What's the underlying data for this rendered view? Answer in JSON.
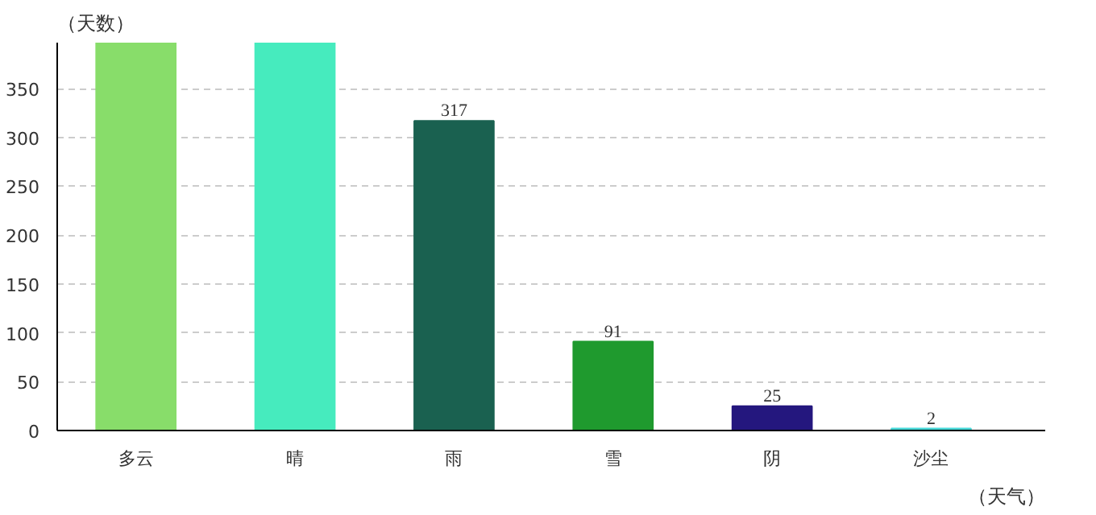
{
  "chart_data": {
    "type": "bar",
    "xlabel": "（天气）",
    "ylabel": "（天数）",
    "categories": [
      "多云",
      "晴",
      "雨",
      "雪",
      "阴",
      "沙尘"
    ],
    "values": [
      397,
      397,
      317,
      91,
      25,
      2
    ],
    "value_labels": [
      null,
      null,
      "317",
      "91",
      "25",
      "2"
    ],
    "colors": [
      "#88dd6a",
      "#46ebbe",
      "#1a6150",
      "#1f9a2e",
      "#24177e",
      "#46d8d8"
    ],
    "ylim": [
      0,
      397
    ],
    "yticks": [
      0,
      50,
      100,
      150,
      200,
      250,
      300,
      350
    ],
    "grid": "y"
  }
}
